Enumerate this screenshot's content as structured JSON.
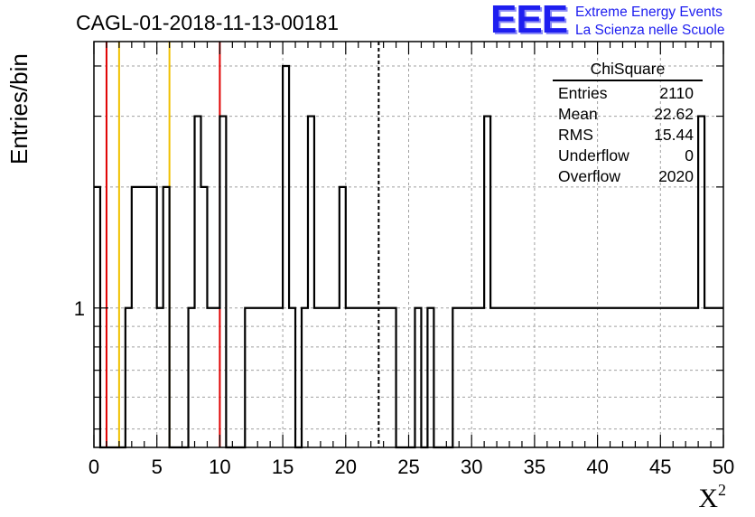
{
  "title": "CAGL-01-2018-11-13-00181",
  "ylabel": "Entries/bin",
  "xlabel": {
    "base": "X",
    "sup": "2"
  },
  "logo": {
    "mark": "EEE",
    "line1": "Extreme Energy Events",
    "line2": "La Scienza nelle Scuole",
    "color": "#1e1ef0"
  },
  "stats": {
    "title": "ChiSquare",
    "rows": [
      {
        "label": "Entries",
        "value": "2110"
      },
      {
        "label": "Mean",
        "value": "22.62"
      },
      {
        "label": "RMS",
        "value": "15.44"
      },
      {
        "label": "Underflow",
        "value": "0"
      },
      {
        "label": "Overflow",
        "value": "2020"
      }
    ]
  },
  "chart_data": {
    "type": "histogram",
    "title": "CAGL-01-2018-11-13-00181",
    "xlabel": "X²",
    "ylabel": "Entries/bin",
    "xlim": [
      0,
      50
    ],
    "ylim": [
      0.45,
      4.6
    ],
    "yscale": "log",
    "grid": true,
    "bin_width": 0.5,
    "x_ticks": [
      0,
      5,
      10,
      15,
      20,
      25,
      30,
      35,
      40,
      45,
      50
    ],
    "y_tick_labels": [
      {
        "value": 1,
        "label": "1"
      }
    ],
    "bin_contents": [
      2,
      0,
      0,
      0,
      0,
      1,
      2,
      2,
      2,
      2,
      1,
      2,
      0,
      0,
      0,
      1,
      3,
      2,
      1,
      1,
      3,
      0,
      0,
      0,
      1,
      1,
      1,
      1,
      1,
      1,
      4,
      1,
      0,
      1,
      3,
      1,
      1,
      1,
      1,
      2,
      1,
      1,
      1,
      1,
      1,
      1,
      1,
      1,
      0,
      0,
      0,
      1,
      0,
      1,
      0,
      0,
      0,
      1,
      1,
      1,
      1,
      1,
      3,
      1,
      1,
      1,
      1,
      1,
      1,
      1,
      1,
      1,
      1,
      1,
      1,
      1,
      1,
      1,
      1,
      1,
      1,
      1,
      1,
      1,
      1,
      1,
      1,
      1,
      1,
      1,
      1,
      1,
      1,
      1,
      1,
      1,
      3,
      1,
      1,
      1
    ],
    "vertical_lines": [
      {
        "x": 1,
        "color": "#e00000",
        "style": "solid"
      },
      {
        "x": 2,
        "color": "#f0c000",
        "style": "solid"
      },
      {
        "x": 6,
        "color": "#f0c000",
        "style": "solid"
      },
      {
        "x": 10,
        "color": "#e00000",
        "style": "solid"
      },
      {
        "x": 22.62,
        "color": "#000000",
        "style": "dashed"
      }
    ],
    "line_color": "#000000"
  }
}
